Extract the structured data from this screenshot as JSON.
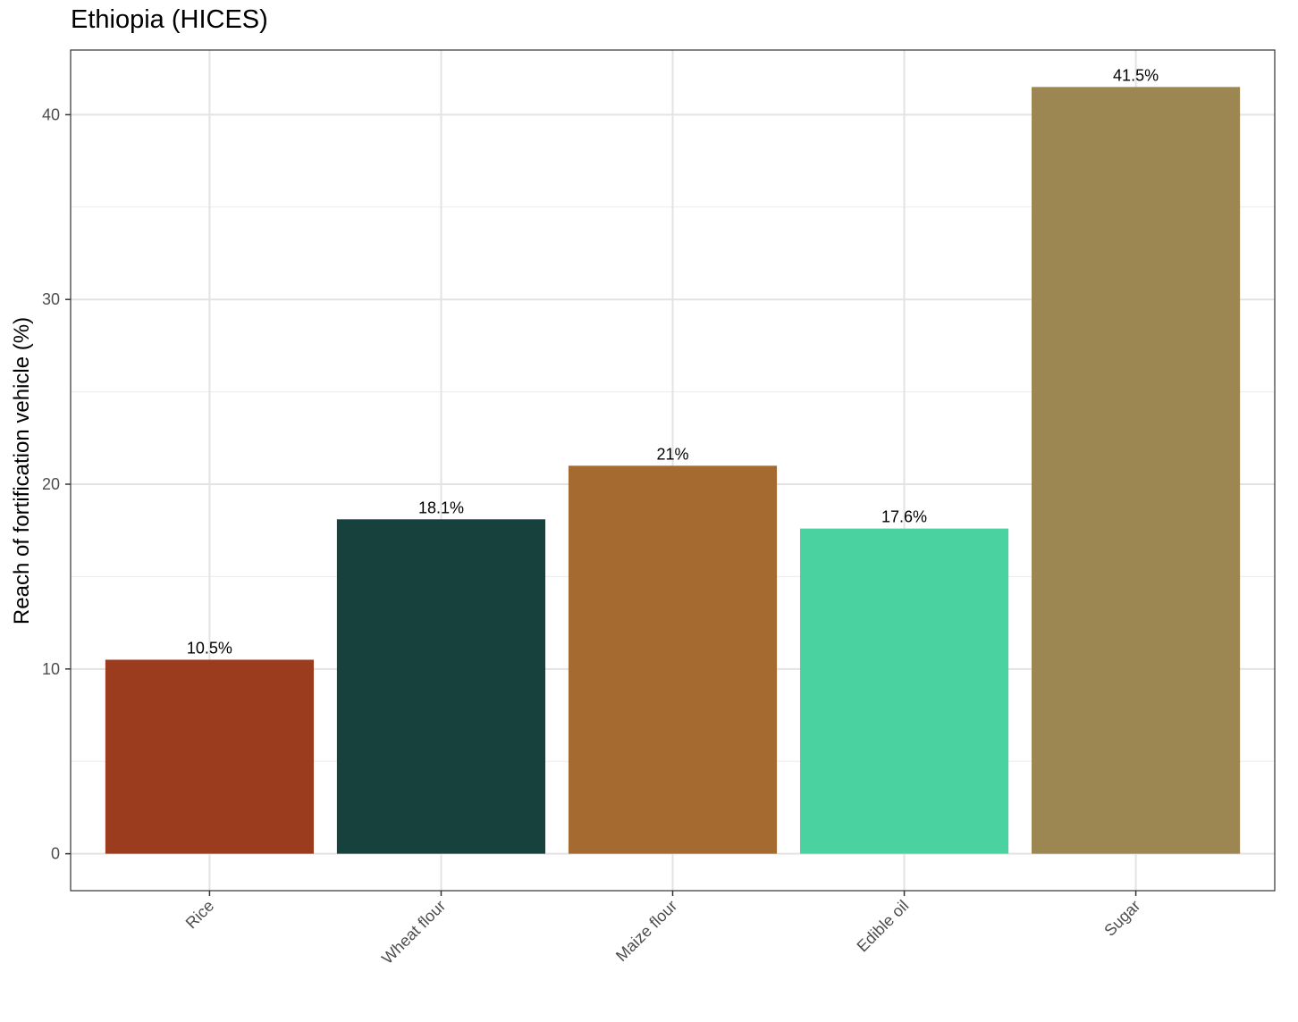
{
  "chart_data": {
    "type": "bar",
    "title": "Ethiopia (HICES)",
    "xlabel": "",
    "ylabel": "Reach of fortification vehicle (%)",
    "categories": [
      "Rice",
      "Wheat flour",
      "Maize flour",
      "Edible oil",
      "Sugar"
    ],
    "values": [
      10.5,
      18.1,
      21.0,
      17.6,
      41.5
    ],
    "data_labels": [
      "10.5%",
      "18.1%",
      "21%",
      "17.6%",
      "41.5%"
    ],
    "colors": [
      "#9c3c1f",
      "#17413d",
      "#a46a30",
      "#4ad2a0",
      "#9c8651"
    ],
    "ylim": [
      -2,
      43.5
    ],
    "yticks": [
      0,
      10,
      20,
      30,
      40
    ],
    "grid": true,
    "legend": "none"
  }
}
